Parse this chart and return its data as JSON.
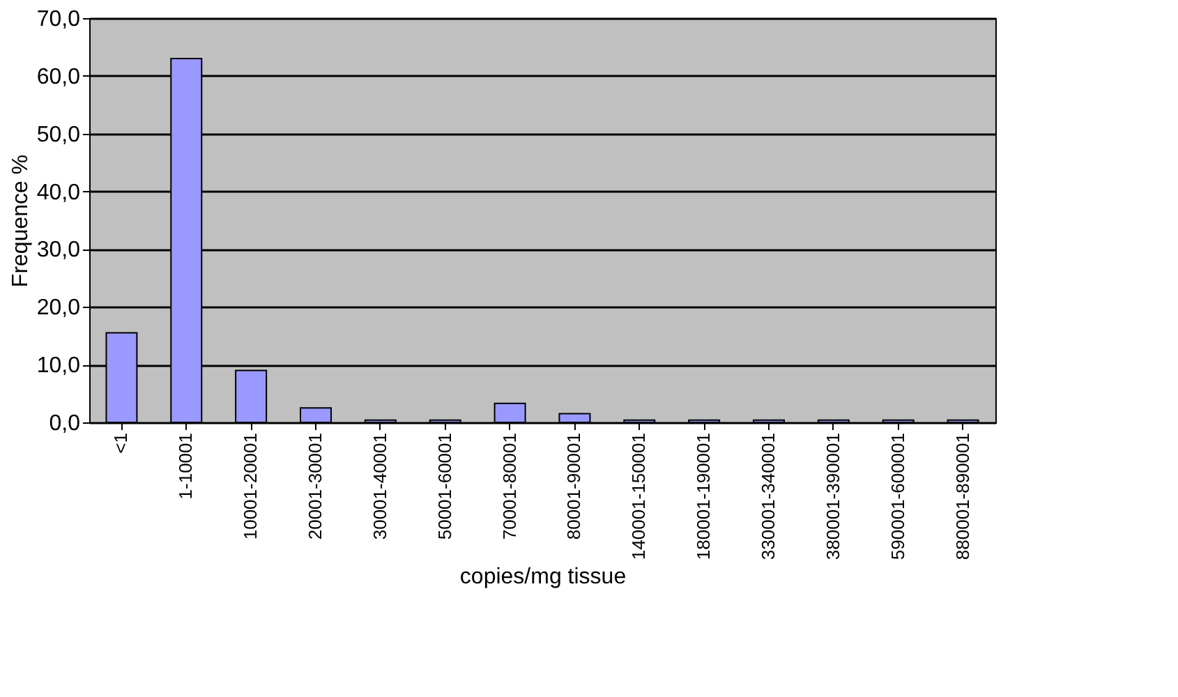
{
  "chart_data": {
    "type": "bar",
    "xlabel": "copies/mg tissue",
    "ylabel": "Frequence %",
    "categories": [
      "<1",
      "1-10001",
      "10001-20001",
      "20001-30001",
      "30001-40001",
      "50001-60001",
      "70001-80001",
      "80001-90001",
      "140001-150001",
      "180001-190001",
      "330001-340001",
      "380001-390001",
      "590001-600001",
      "880001-890001"
    ],
    "values": [
      15.5,
      63,
      9,
      2.5,
      0.4,
      0.4,
      3.3,
      1.5,
      0.4,
      0.4,
      0.4,
      0.4,
      0.4,
      0.4
    ],
    "color": "#9999ff",
    "ylim": [
      0,
      70
    ],
    "yticks": [
      {
        "value": 0,
        "label": "0,0"
      },
      {
        "value": 10,
        "label": "10,0"
      },
      {
        "value": 20,
        "label": "20,0"
      },
      {
        "value": 30,
        "label": "30,0"
      },
      {
        "value": 40,
        "label": "40,0"
      },
      {
        "value": 50,
        "label": "50,0"
      },
      {
        "value": 60,
        "label": "60,0"
      },
      {
        "value": 70,
        "label": "70,0"
      }
    ],
    "grid": "y"
  }
}
